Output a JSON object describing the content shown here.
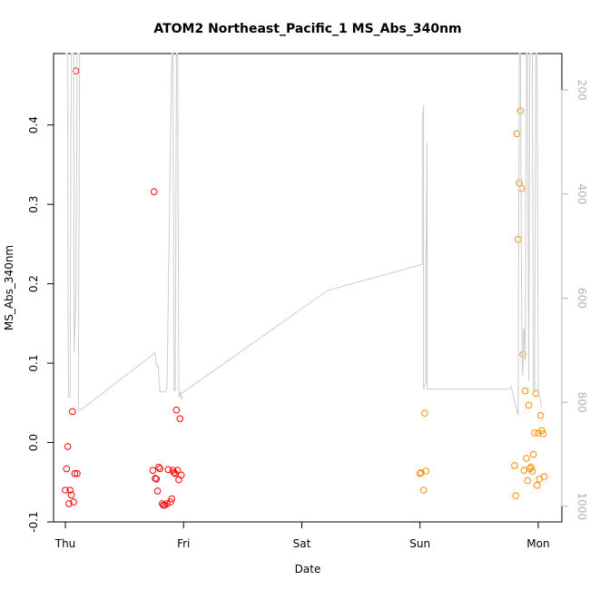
{
  "chart_data": {
    "type": "scatter",
    "title": "ATOM2 Northeast_Pacific_1 MS_Abs_340nm",
    "xlabel": "Date",
    "ylabel": "MS_Abs_340nm",
    "x_unit": "days since Thu 00:00",
    "xlim": [
      -0.1,
      4.2
    ],
    "ylim": [
      -0.1,
      0.49
    ],
    "x_ticks": [
      {
        "value": 0,
        "label": "Thu"
      },
      {
        "value": 1,
        "label": "Fri"
      },
      {
        "value": 2,
        "label": "Sat"
      },
      {
        "value": 3,
        "label": "Sun"
      },
      {
        "value": 4,
        "label": "Mon"
      }
    ],
    "y_ticks": [
      -0.1,
      0.0,
      0.1,
      0.2,
      0.3,
      0.4
    ],
    "y2": {
      "ylim": [
        1030,
        130
      ],
      "ticks": [
        200,
        400,
        600,
        800,
        1000
      ],
      "color": "#b3b3b3"
    },
    "series": [
      {
        "color": "#ff0000",
        "points": [
          [
            0.0,
            -0.06
          ],
          [
            0.01,
            -0.033
          ],
          [
            0.02,
            -0.005
          ],
          [
            0.03,
            -0.077
          ],
          [
            0.04,
            -0.06
          ],
          [
            0.05,
            -0.066
          ],
          [
            0.06,
            0.039
          ],
          [
            0.07,
            -0.075
          ],
          [
            0.08,
            -0.039
          ],
          [
            0.09,
            0.468
          ],
          [
            0.1,
            -0.039
          ],
          [
            0.74,
            -0.035
          ],
          [
            0.75,
            0.316
          ],
          [
            0.76,
            -0.045
          ],
          [
            0.77,
            -0.046
          ],
          [
            0.78,
            -0.061
          ],
          [
            0.79,
            -0.031
          ],
          [
            0.8,
            -0.033
          ],
          [
            0.82,
            -0.077
          ],
          [
            0.83,
            -0.079
          ],
          [
            0.84,
            -0.079
          ],
          [
            0.86,
            -0.077
          ],
          [
            0.87,
            -0.034
          ],
          [
            0.89,
            -0.075
          ],
          [
            0.9,
            -0.071
          ],
          [
            0.91,
            -0.035
          ],
          [
            0.92,
            -0.038
          ],
          [
            0.93,
            -0.039
          ],
          [
            0.94,
            0.041
          ],
          [
            0.95,
            -0.035
          ],
          [
            0.96,
            -0.047
          ],
          [
            0.97,
            0.03
          ],
          [
            0.98,
            -0.041
          ]
        ]
      },
      {
        "color": "#ff8c00",
        "points": [
          [
            3.0,
            -0.039
          ],
          [
            3.01,
            -0.038
          ],
          [
            3.03,
            -0.06
          ],
          [
            3.04,
            0.037
          ],
          [
            3.05,
            -0.036
          ],
          [
            3.8,
            -0.029
          ],
          [
            3.81,
            -0.067
          ],
          [
            3.82,
            0.389
          ],
          [
            3.83,
            0.256
          ],
          [
            3.84,
            0.327
          ],
          [
            3.85,
            0.418
          ],
          [
            3.86,
            0.32
          ],
          [
            3.87,
            0.111
          ],
          [
            3.88,
            -0.035
          ],
          [
            3.89,
            0.065
          ],
          [
            3.9,
            -0.02
          ],
          [
            3.91,
            -0.048
          ],
          [
            3.92,
            0.047
          ],
          [
            3.93,
            -0.033
          ],
          [
            3.94,
            -0.031
          ],
          [
            3.95,
            -0.036
          ],
          [
            3.96,
            -0.015
          ],
          [
            3.97,
            0.012
          ],
          [
            3.98,
            0.062
          ],
          [
            3.99,
            -0.054
          ],
          [
            4.0,
            0.012
          ],
          [
            4.01,
            -0.046
          ],
          [
            4.02,
            0.034
          ],
          [
            4.03,
            0.015
          ],
          [
            4.04,
            0.011
          ],
          [
            4.05,
            -0.043
          ]
        ]
      },
      {
        "type": "line",
        "axis": "y2",
        "color": "#cccccc",
        "points": [
          [
            0.0,
            130
          ],
          [
            0.02,
            130
          ],
          [
            0.025,
            790
          ],
          [
            0.04,
            790
          ],
          [
            0.05,
            130
          ],
          [
            0.07,
            130
          ],
          [
            0.075,
            705
          ],
          [
            0.09,
            600
          ],
          [
            0.1,
            130
          ],
          [
            0.12,
            130
          ],
          [
            0.11,
            815
          ],
          [
            0.13,
            815
          ],
          [
            0.76,
            705
          ],
          [
            0.77,
            730
          ],
          [
            0.785,
            730
          ],
          [
            0.79,
            750
          ],
          [
            0.8,
            780
          ],
          [
            0.83,
            780
          ],
          [
            0.85,
            780
          ],
          [
            0.86,
            770
          ],
          [
            0.9,
            130
          ],
          [
            0.91,
            130
          ],
          [
            0.92,
            778
          ],
          [
            0.93,
            778
          ],
          [
            0.94,
            130
          ],
          [
            0.95,
            130
          ],
          [
            0.96,
            790
          ],
          [
            0.975,
            780
          ],
          [
            0.98,
            795
          ],
          [
            0.99,
            790
          ],
          [
            0.97,
            785
          ],
          [
            2.22,
            585
          ],
          [
            3.02,
            535
          ],
          [
            3.02,
            260
          ],
          [
            3.03,
            230
          ],
          [
            3.03,
            775
          ],
          [
            3.05,
            760
          ],
          [
            3.05,
            555
          ],
          [
            3.06,
            300
          ],
          [
            3.06,
            775
          ],
          [
            3.75,
            775
          ],
          [
            3.77,
            770
          ],
          [
            3.83,
            825
          ],
          [
            3.84,
            130
          ],
          [
            3.85,
            130
          ],
          [
            3.86,
            640
          ],
          [
            3.865,
            730
          ],
          [
            3.87,
            750
          ],
          [
            3.875,
            660
          ],
          [
            3.88,
            660
          ],
          [
            3.89,
            720
          ],
          [
            3.9,
            130
          ],
          [
            3.91,
            130
          ],
          [
            3.92,
            760
          ],
          [
            3.93,
            130
          ],
          [
            3.95,
            130
          ],
          [
            3.96,
            780
          ],
          [
            3.97,
            780
          ],
          [
            3.98,
            130
          ],
          [
            3.99,
            130
          ],
          [
            4.0,
            785
          ],
          [
            4.01,
            790
          ],
          [
            4.02,
            800
          ],
          [
            4.03,
            810
          ]
        ]
      }
    ],
    "grid": false,
    "legend": "none"
  }
}
